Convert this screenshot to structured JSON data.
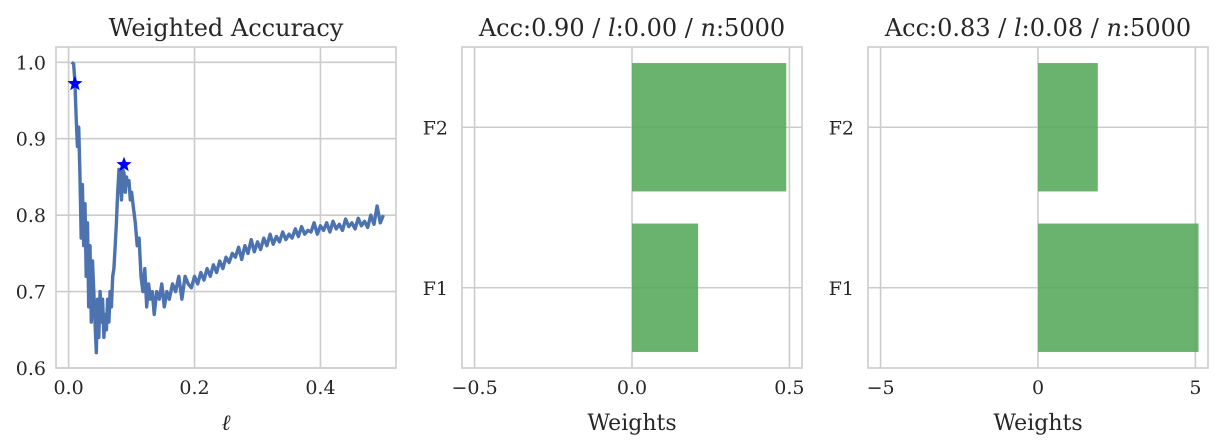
{
  "chart_data": [
    {
      "type": "line",
      "title": "Weighted Accuracy",
      "xlabel": "ℓ",
      "ylabel": "",
      "xlim": [
        -0.02,
        0.52
      ],
      "ylim": [
        0.6,
        1.02
      ],
      "xticks": [
        0.0,
        0.2,
        0.4
      ],
      "xtick_labels": [
        "0.0",
        "0.2",
        "0.4"
      ],
      "yticks": [
        0.6,
        0.7,
        0.8,
        0.9,
        1.0
      ],
      "ytick_labels": [
        "0.6",
        "0.7",
        "0.8",
        "0.9",
        "1.0"
      ],
      "grid": true,
      "series": [
        {
          "color": "#4c72b0",
          "x": [
            0.005,
            0.008,
            0.01,
            0.012,
            0.014,
            0.016,
            0.018,
            0.02,
            0.022,
            0.024,
            0.026,
            0.028,
            0.03,
            0.032,
            0.034,
            0.036,
            0.038,
            0.04,
            0.042,
            0.044,
            0.046,
            0.048,
            0.05,
            0.052,
            0.054,
            0.056,
            0.058,
            0.06,
            0.062,
            0.064,
            0.066,
            0.068,
            0.07,
            0.072,
            0.074,
            0.076,
            0.078,
            0.08,
            0.082,
            0.084,
            0.086,
            0.088,
            0.09,
            0.092,
            0.094,
            0.096,
            0.098,
            0.1,
            0.103,
            0.106,
            0.109,
            0.112,
            0.115,
            0.118,
            0.121,
            0.124,
            0.127,
            0.13,
            0.133,
            0.136,
            0.14,
            0.144,
            0.148,
            0.152,
            0.156,
            0.16,
            0.165,
            0.17,
            0.175,
            0.18,
            0.185,
            0.19,
            0.195,
            0.2,
            0.205,
            0.21,
            0.215,
            0.22,
            0.225,
            0.23,
            0.235,
            0.24,
            0.245,
            0.25,
            0.255,
            0.26,
            0.265,
            0.27,
            0.275,
            0.28,
            0.285,
            0.29,
            0.295,
            0.3,
            0.305,
            0.31,
            0.315,
            0.32,
            0.325,
            0.33,
            0.335,
            0.34,
            0.345,
            0.35,
            0.355,
            0.36,
            0.365,
            0.37,
            0.375,
            0.38,
            0.385,
            0.39,
            0.395,
            0.4,
            0.405,
            0.41,
            0.415,
            0.42,
            0.425,
            0.43,
            0.435,
            0.44,
            0.445,
            0.45,
            0.455,
            0.46,
            0.465,
            0.47,
            0.475,
            0.48,
            0.485,
            0.49,
            0.495,
            0.5
          ],
          "y": [
            1.0,
            0.998,
            0.975,
            0.93,
            0.89,
            0.915,
            0.855,
            0.77,
            0.84,
            0.76,
            0.815,
            0.72,
            0.79,
            0.68,
            0.76,
            0.66,
            0.74,
            0.7,
            0.66,
            0.62,
            0.69,
            0.64,
            0.7,
            0.66,
            0.69,
            0.64,
            0.67,
            0.65,
            0.69,
            0.66,
            0.7,
            0.68,
            0.72,
            0.73,
            0.76,
            0.79,
            0.83,
            0.86,
            0.85,
            0.82,
            0.86,
            0.855,
            0.83,
            0.85,
            0.84,
            0.845,
            0.82,
            0.83,
            0.81,
            0.79,
            0.76,
            0.77,
            0.72,
            0.7,
            0.73,
            0.68,
            0.71,
            0.69,
            0.7,
            0.67,
            0.7,
            0.69,
            0.71,
            0.68,
            0.7,
            0.69,
            0.71,
            0.7,
            0.72,
            0.69,
            0.72,
            0.71,
            0.705,
            0.72,
            0.71,
            0.725,
            0.715,
            0.73,
            0.72,
            0.735,
            0.725,
            0.74,
            0.73,
            0.745,
            0.738,
            0.75,
            0.745,
            0.758,
            0.742,
            0.76,
            0.75,
            0.768,
            0.752,
            0.765,
            0.755,
            0.77,
            0.76,
            0.775,
            0.762,
            0.772,
            0.765,
            0.778,
            0.768,
            0.775,
            0.77,
            0.782,
            0.772,
            0.785,
            0.775,
            0.78,
            0.778,
            0.79,
            0.775,
            0.786,
            0.78,
            0.79,
            0.778,
            0.792,
            0.782,
            0.788,
            0.78,
            0.795,
            0.785,
            0.79,
            0.782,
            0.796,
            0.786,
            0.792,
            0.784,
            0.8,
            0.788,
            0.812,
            0.79,
            0.8
          ]
        }
      ],
      "markers": [
        {
          "x": 0.01,
          "y": 0.972,
          "color": "#0000ff",
          "shape": "star"
        },
        {
          "x": 0.088,
          "y": 0.866,
          "color": "#0000ff",
          "shape": "star"
        }
      ]
    },
    {
      "type": "bar",
      "orientation": "horizontal",
      "title": "Acc:0.90 / l:0.00 / n:5000",
      "title_parts": [
        "Acc:0.90 / ",
        "l",
        ":0.00 / ",
        "n",
        ":5000"
      ],
      "xlabel": "Weights",
      "categories": [
        "F1",
        "F2"
      ],
      "values": [
        0.21,
        0.49
      ],
      "xlim": [
        -0.54,
        0.54
      ],
      "xticks": [
        -0.5,
        0.0,
        0.5
      ],
      "xtick_labels": [
        "−0.5",
        "0.0",
        "0.5"
      ],
      "bar_color": "#55a85a",
      "grid": true
    },
    {
      "type": "bar",
      "orientation": "horizontal",
      "title": "Acc:0.83 / l:0.08 / n:5000",
      "title_parts": [
        "Acc:0.83 / ",
        "l",
        ":0.08 / ",
        "n",
        ":5000"
      ],
      "xlabel": "Weights",
      "categories": [
        "F1",
        "F2"
      ],
      "values": [
        5.1,
        1.9
      ],
      "xlim": [
        -5.4,
        5.4
      ],
      "xticks": [
        -5,
        0,
        5
      ],
      "xtick_labels": [
        "−5",
        "0",
        "5"
      ],
      "bar_color": "#55a85a",
      "grid": true
    }
  ]
}
